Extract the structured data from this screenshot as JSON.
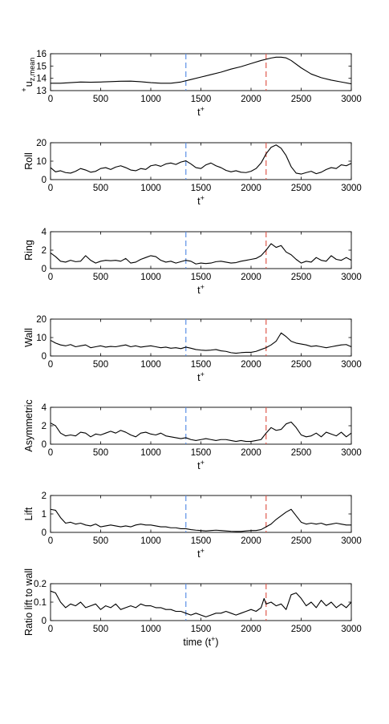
{
  "chart_data": [
    {
      "type": "line",
      "ylabel": "u",
      "ylabel_sup": "+",
      "ylabel_sub": "z,mean",
      "xlabel": "t",
      "xlabel_sup": "+",
      "xlim": [
        0,
        3000
      ],
      "ylim": [
        13,
        16
      ],
      "xticks": [
        0,
        500,
        1000,
        1500,
        2000,
        2500,
        3000
      ],
      "yticks": [
        13,
        14,
        15,
        16
      ],
      "vlines": [
        {
          "x": 1350,
          "color": "#5b8fe6"
        },
        {
          "x": 2150,
          "color": "#e05a4e"
        }
      ],
      "series": [
        {
          "x": [
            0,
            100,
            200,
            300,
            400,
            500,
            600,
            700,
            800,
            900,
            1000,
            1100,
            1200,
            1300,
            1400,
            1500,
            1600,
            1700,
            1800,
            1900,
            2000,
            2100,
            2200,
            2250,
            2300,
            2350,
            2400,
            2500,
            2600,
            2700,
            2800,
            2900,
            3000
          ],
          "y": [
            13.6,
            13.6,
            13.65,
            13.7,
            13.68,
            13.7,
            13.73,
            13.76,
            13.77,
            13.72,
            13.65,
            13.6,
            13.6,
            13.7,
            13.9,
            14.1,
            14.3,
            14.5,
            14.75,
            14.95,
            15.2,
            15.45,
            15.65,
            15.72,
            15.72,
            15.66,
            15.45,
            14.85,
            14.35,
            14.05,
            13.85,
            13.7,
            13.55
          ]
        }
      ]
    },
    {
      "type": "line",
      "ylabel": "Roll",
      "xlabel": "t",
      "xlabel_sup": "+",
      "xlim": [
        0,
        3000
      ],
      "ylim": [
        0,
        20
      ],
      "xticks": [
        0,
        500,
        1000,
        1500,
        2000,
        2500,
        3000
      ],
      "yticks": [
        0,
        10,
        20
      ],
      "vlines": [
        {
          "x": 1350,
          "color": "#5b8fe6"
        },
        {
          "x": 2150,
          "color": "#e05a4e"
        }
      ],
      "series": [
        {
          "x": [
            0,
            50,
            100,
            150,
            200,
            250,
            300,
            350,
            400,
            450,
            500,
            550,
            600,
            650,
            700,
            750,
            800,
            850,
            900,
            950,
            1000,
            1050,
            1100,
            1150,
            1200,
            1250,
            1300,
            1350,
            1400,
            1450,
            1500,
            1550,
            1600,
            1650,
            1700,
            1750,
            1800,
            1850,
            1900,
            1950,
            2000,
            2050,
            2100,
            2150,
            2200,
            2250,
            2300,
            2350,
            2400,
            2450,
            2500,
            2550,
            2600,
            2650,
            2700,
            2750,
            2800,
            2850,
            2900,
            2950,
            3000
          ],
          "y": [
            6.5,
            4.2,
            4.8,
            3.8,
            3.5,
            4.5,
            6.0,
            5.2,
            4.0,
            4.5,
            6.0,
            6.5,
            5.5,
            6.8,
            7.5,
            6.5,
            5.2,
            4.8,
            6.0,
            5.5,
            7.5,
            8.0,
            7.2,
            8.5,
            9.0,
            8.2,
            9.5,
            10.2,
            8.5,
            6.5,
            6.0,
            8.0,
            9.0,
            7.5,
            6.5,
            5.0,
            4.2,
            4.8,
            4.0,
            3.8,
            4.5,
            6.0,
            9.0,
            14.0,
            17.5,
            18.8,
            17.0,
            13.0,
            7.0,
            3.5,
            3.0,
            3.8,
            4.5,
            3.2,
            4.0,
            5.5,
            6.5,
            6.0,
            8.0,
            7.5,
            8.8
          ]
        }
      ]
    },
    {
      "type": "line",
      "ylabel": "Ring",
      "xlabel": "t",
      "xlabel_sup": "+",
      "xlim": [
        0,
        3000
      ],
      "ylim": [
        0,
        4
      ],
      "xticks": [
        0,
        500,
        1000,
        1500,
        2000,
        2500,
        3000
      ],
      "yticks": [
        0,
        2,
        4
      ],
      "vlines": [
        {
          "x": 1350,
          "color": "#5b8fe6"
        },
        {
          "x": 2150,
          "color": "#e05a4e"
        }
      ],
      "series": [
        {
          "x": [
            0,
            50,
            100,
            150,
            200,
            250,
            300,
            350,
            400,
            450,
            500,
            550,
            600,
            650,
            700,
            750,
            800,
            850,
            900,
            950,
            1000,
            1050,
            1100,
            1150,
            1200,
            1250,
            1300,
            1350,
            1400,
            1450,
            1500,
            1550,
            1600,
            1650,
            1700,
            1750,
            1800,
            1850,
            1900,
            1950,
            2000,
            2050,
            2100,
            2150,
            2200,
            2250,
            2300,
            2350,
            2400,
            2450,
            2500,
            2550,
            2600,
            2650,
            2700,
            2750,
            2800,
            2850,
            2900,
            2950,
            3000
          ],
          "y": [
            1.7,
            1.3,
            0.8,
            0.7,
            0.9,
            0.75,
            0.8,
            1.4,
            0.9,
            0.6,
            0.8,
            0.9,
            0.85,
            0.9,
            0.8,
            1.1,
            0.6,
            0.7,
            1.0,
            1.2,
            1.4,
            1.3,
            0.9,
            0.7,
            0.8,
            0.6,
            0.75,
            0.9,
            0.8,
            0.5,
            0.6,
            0.55,
            0.6,
            0.75,
            0.8,
            0.7,
            0.6,
            0.65,
            0.8,
            0.9,
            1.0,
            1.1,
            1.4,
            2.0,
            2.7,
            2.3,
            2.5,
            1.8,
            1.5,
            1.0,
            0.6,
            0.8,
            0.7,
            1.2,
            0.9,
            0.8,
            1.4,
            1.0,
            0.9,
            1.2,
            0.9
          ]
        }
      ]
    },
    {
      "type": "line",
      "ylabel": "Wall",
      "xlabel": "t",
      "xlabel_sup": "+",
      "xlim": [
        0,
        3000
      ],
      "ylim": [
        0,
        20
      ],
      "xticks": [
        0,
        500,
        1000,
        1500,
        2000,
        2500,
        3000
      ],
      "yticks": [
        0,
        10,
        20
      ],
      "vlines": [
        {
          "x": 1350,
          "color": "#5b8fe6"
        },
        {
          "x": 2150,
          "color": "#e05a4e"
        }
      ],
      "series": [
        {
          "x": [
            0,
            50,
            100,
            150,
            200,
            250,
            300,
            350,
            400,
            450,
            500,
            550,
            600,
            650,
            700,
            750,
            800,
            850,
            900,
            950,
            1000,
            1050,
            1100,
            1150,
            1200,
            1250,
            1300,
            1350,
            1400,
            1450,
            1500,
            1550,
            1600,
            1650,
            1700,
            1750,
            1800,
            1850,
            1900,
            1950,
            2000,
            2050,
            2100,
            2150,
            2200,
            2250,
            2300,
            2350,
            2400,
            2450,
            2500,
            2550,
            2600,
            2650,
            2700,
            2750,
            2800,
            2850,
            2900,
            2950,
            3000
          ],
          "y": [
            8.5,
            7.0,
            6.0,
            5.5,
            6.2,
            5.0,
            5.5,
            6.0,
            4.5,
            5.0,
            5.5,
            4.8,
            5.2,
            5.0,
            5.5,
            6.0,
            5.0,
            5.5,
            4.8,
            5.2,
            5.5,
            5.0,
            4.5,
            4.8,
            4.2,
            4.5,
            4.0,
            4.8,
            4.2,
            3.5,
            3.2,
            3.0,
            3.2,
            3.5,
            2.8,
            2.5,
            1.8,
            1.5,
            1.8,
            2.0,
            2.0,
            2.5,
            3.5,
            4.5,
            6.0,
            8.0,
            12.5,
            10.5,
            8.0,
            7.0,
            6.5,
            6.0,
            5.2,
            5.5,
            5.0,
            4.5,
            5.0,
            5.5,
            6.0,
            6.2,
            5.0
          ]
        }
      ]
    },
    {
      "type": "line",
      "ylabel": "Asymmetric",
      "xlabel": "t",
      "xlabel_sup": "+",
      "xlim": [
        0,
        3000
      ],
      "ylim": [
        0,
        4
      ],
      "xticks": [
        0,
        500,
        1000,
        1500,
        2000,
        2500,
        3000
      ],
      "yticks": [
        0,
        2,
        4
      ],
      "vlines": [
        {
          "x": 1350,
          "color": "#5b8fe6"
        },
        {
          "x": 2150,
          "color": "#e05a4e"
        }
      ],
      "series": [
        {
          "x": [
            0,
            50,
            100,
            150,
            200,
            250,
            300,
            350,
            400,
            450,
            500,
            550,
            600,
            650,
            700,
            750,
            800,
            850,
            900,
            950,
            1000,
            1050,
            1100,
            1150,
            1200,
            1250,
            1300,
            1350,
            1400,
            1450,
            1500,
            1550,
            1600,
            1650,
            1700,
            1750,
            1800,
            1850,
            1900,
            1950,
            2000,
            2050,
            2100,
            2150,
            2200,
            2250,
            2300,
            2350,
            2400,
            2450,
            2500,
            2550,
            2600,
            2650,
            2700,
            2750,
            2800,
            2850,
            2900,
            2950,
            3000
          ],
          "y": [
            2.3,
            2.0,
            1.2,
            0.9,
            1.0,
            0.9,
            1.3,
            1.2,
            0.8,
            1.1,
            1.0,
            1.2,
            1.4,
            1.2,
            1.5,
            1.3,
            1.0,
            0.8,
            1.2,
            1.3,
            1.1,
            1.0,
            1.2,
            0.9,
            0.8,
            0.7,
            0.6,
            0.7,
            0.5,
            0.4,
            0.5,
            0.6,
            0.5,
            0.4,
            0.5,
            0.5,
            0.4,
            0.3,
            0.4,
            0.3,
            0.3,
            0.4,
            0.5,
            1.2,
            1.8,
            1.5,
            1.6,
            2.2,
            2.4,
            1.8,
            1.0,
            0.8,
            0.9,
            1.2,
            0.8,
            1.3,
            1.1,
            0.9,
            1.3,
            0.8,
            1.2
          ]
        }
      ]
    },
    {
      "type": "line",
      "ylabel": "Lift",
      "xlabel": "t",
      "xlabel_sup": "+",
      "xlim": [
        0,
        3000
      ],
      "ylim": [
        0,
        2
      ],
      "xticks": [
        0,
        500,
        1000,
        1500,
        2000,
        2500,
        3000
      ],
      "yticks": [
        0,
        1,
        2
      ],
      "vlines": [
        {
          "x": 1350,
          "color": "#5b8fe6"
        },
        {
          "x": 2150,
          "color": "#e05a4e"
        }
      ],
      "series": [
        {
          "x": [
            0,
            50,
            100,
            150,
            200,
            250,
            300,
            350,
            400,
            450,
            500,
            550,
            600,
            650,
            700,
            750,
            800,
            850,
            900,
            950,
            1000,
            1050,
            1100,
            1150,
            1200,
            1250,
            1300,
            1350,
            1400,
            1450,
            1500,
            1550,
            1600,
            1650,
            1700,
            1750,
            1800,
            1850,
            1900,
            1950,
            2000,
            2050,
            2100,
            2150,
            2200,
            2250,
            2300,
            2350,
            2400,
            2450,
            2500,
            2550,
            2600,
            2650,
            2700,
            2750,
            2800,
            2850,
            2900,
            2950,
            3000
          ],
          "y": [
            1.25,
            1.2,
            0.8,
            0.5,
            0.55,
            0.45,
            0.5,
            0.4,
            0.35,
            0.45,
            0.3,
            0.35,
            0.4,
            0.35,
            0.3,
            0.35,
            0.3,
            0.4,
            0.45,
            0.4,
            0.4,
            0.35,
            0.3,
            0.3,
            0.25,
            0.25,
            0.2,
            0.2,
            0.15,
            0.12,
            0.1,
            0.08,
            0.1,
            0.12,
            0.1,
            0.08,
            0.06,
            0.05,
            0.05,
            0.08,
            0.1,
            0.1,
            0.15,
            0.3,
            0.45,
            0.7,
            0.9,
            1.1,
            1.25,
            0.9,
            0.55,
            0.45,
            0.5,
            0.45,
            0.5,
            0.4,
            0.45,
            0.5,
            0.45,
            0.4,
            0.4
          ]
        }
      ]
    },
    {
      "type": "line",
      "ylabel": "Ratio lift to wall",
      "xlabel": "time (t",
      "xlabel_sup": "+",
      "xlabel_after": ")",
      "xlim": [
        0,
        3000
      ],
      "ylim": [
        0,
        0.2
      ],
      "xticks": [
        0,
        500,
        1000,
        1500,
        2000,
        2500,
        3000
      ],
      "yticks": [
        0,
        0.1,
        0.2
      ],
      "vlines": [
        {
          "x": 1350,
          "color": "#5b8fe6"
        },
        {
          "x": 2150,
          "color": "#e05a4e"
        }
      ],
      "series": [
        {
          "x": [
            0,
            50,
            100,
            150,
            200,
            250,
            300,
            350,
            400,
            450,
            500,
            550,
            600,
            650,
            700,
            750,
            800,
            850,
            900,
            950,
            1000,
            1050,
            1100,
            1150,
            1200,
            1250,
            1300,
            1350,
            1400,
            1450,
            1500,
            1550,
            1600,
            1650,
            1700,
            1750,
            1800,
            1850,
            1900,
            1950,
            2000,
            2050,
            2100,
            2130,
            2150,
            2200,
            2250,
            2300,
            2350,
            2400,
            2450,
            2500,
            2550,
            2600,
            2650,
            2700,
            2750,
            2800,
            2850,
            2900,
            2950,
            3000
          ],
          "y": [
            0.16,
            0.15,
            0.1,
            0.07,
            0.09,
            0.08,
            0.1,
            0.07,
            0.08,
            0.09,
            0.06,
            0.08,
            0.07,
            0.09,
            0.06,
            0.07,
            0.08,
            0.07,
            0.09,
            0.08,
            0.08,
            0.07,
            0.07,
            0.06,
            0.06,
            0.05,
            0.05,
            0.04,
            0.03,
            0.04,
            0.03,
            0.02,
            0.03,
            0.04,
            0.04,
            0.05,
            0.04,
            0.03,
            0.04,
            0.05,
            0.06,
            0.05,
            0.07,
            0.12,
            0.09,
            0.1,
            0.08,
            0.09,
            0.06,
            0.14,
            0.15,
            0.12,
            0.08,
            0.1,
            0.07,
            0.11,
            0.08,
            0.1,
            0.07,
            0.09,
            0.07,
            0.1
          ]
        }
      ]
    }
  ]
}
